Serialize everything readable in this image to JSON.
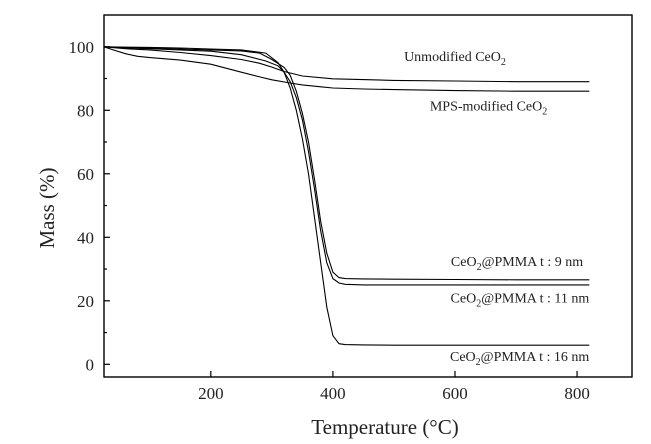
{
  "chart_data": {
    "type": "line",
    "title": "",
    "xlabel": "Temperature (°C)",
    "ylabel": "Mass (%)",
    "xlim": [
      25,
      890
    ],
    "ylim": [
      -4,
      110
    ],
    "xticks": [
      200,
      400,
      600,
      800
    ],
    "yticks": [
      0,
      20,
      40,
      60,
      80,
      100
    ],
    "grid": false,
    "legend": "none",
    "series": [
      {
        "color": "#000000",
        "x": [
          25,
          60,
          100,
          150,
          200,
          250,
          280,
          300,
          320,
          350,
          400,
          500,
          600,
          700,
          820
        ],
        "y": [
          100,
          99.4,
          99.0,
          98.2,
          97.2,
          96.0,
          94.8,
          93.6,
          92.2,
          90.8,
          89.9,
          89.4,
          89.2,
          89.0,
          89.0
        ]
      },
      {
        "color": "#000000",
        "x": [
          25,
          40,
          60,
          80,
          100,
          150,
          200,
          250,
          280,
          300,
          330,
          350,
          380,
          400,
          450,
          500,
          600,
          700,
          820
        ],
        "y": [
          100,
          99.0,
          97.8,
          97.0,
          96.6,
          95.8,
          94.5,
          92.0,
          90.5,
          89.6,
          88.6,
          88.0,
          87.4,
          87.0,
          86.7,
          86.5,
          86.2,
          86.0,
          86.0
        ]
      },
      {
        "color": "#000000",
        "x": [
          25,
          50,
          100,
          150,
          200,
          250,
          280,
          300,
          320,
          330,
          340,
          350,
          360,
          370,
          380,
          390,
          400,
          410,
          420,
          450,
          500,
          600,
          700,
          820
        ],
        "y": [
          100,
          99.8,
          99.6,
          99.3,
          99.0,
          98.7,
          98.0,
          96.0,
          93.5,
          91.0,
          86.0,
          79.0,
          70.0,
          58.0,
          45.0,
          35.0,
          29.0,
          27.3,
          27.0,
          26.9,
          26.8,
          26.7,
          26.6,
          26.6
        ]
      },
      {
        "color": "#000000",
        "x": [
          25,
          50,
          100,
          150,
          200,
          250,
          290,
          310,
          320,
          330,
          340,
          350,
          360,
          370,
          380,
          390,
          400,
          410,
          420,
          450,
          500,
          600,
          700,
          820
        ],
        "y": [
          100,
          99.7,
          99.4,
          99.0,
          98.6,
          97.5,
          95.5,
          94.0,
          92.0,
          89.0,
          84.0,
          77.0,
          67.0,
          55.0,
          42.0,
          32.0,
          27.0,
          25.6,
          25.2,
          25.0,
          25.0,
          25.0,
          25.0,
          25.0
        ]
      },
      {
        "color": "#000000",
        "x": [
          25,
          50,
          100,
          150,
          200,
          250,
          290,
          310,
          320,
          330,
          340,
          350,
          360,
          370,
          380,
          390,
          400,
          410,
          420,
          450,
          500,
          600,
          700,
          820
        ],
        "y": [
          100,
          99.9,
          99.8,
          99.6,
          99.3,
          99.0,
          98.0,
          95.0,
          92.0,
          87.0,
          80.0,
          71.0,
          60.0,
          46.0,
          32.0,
          18.0,
          9.0,
          6.5,
          6.2,
          6.1,
          6.0,
          6.0,
          6.0,
          6.0
        ]
      }
    ],
    "annotations": [
      {
        "text": "Unmodified CeO",
        "sub": "2",
        "tail": "",
        "x": 600,
        "y": 95.5,
        "anchor": "middle"
      },
      {
        "text": "MPS-modified CeO",
        "sub": "2",
        "tail": "",
        "x": 655,
        "y": 80.0,
        "anchor": "middle"
      },
      {
        "text": "CeO",
        "sub": "2",
        "tail": "@PMMA  t : 9 nm",
        "x": 810,
        "y": 31.0,
        "anchor": "end"
      },
      {
        "text": "CeO",
        "sub": "2",
        "tail": "@PMMA  t : 11 nm",
        "x": 820,
        "y": 19.5,
        "anchor": "end"
      },
      {
        "text": "CeO",
        "sub": "2",
        "tail": "@PMMA  t : 16 nm",
        "x": 820,
        "y": 1.0,
        "anchor": "end"
      }
    ]
  }
}
